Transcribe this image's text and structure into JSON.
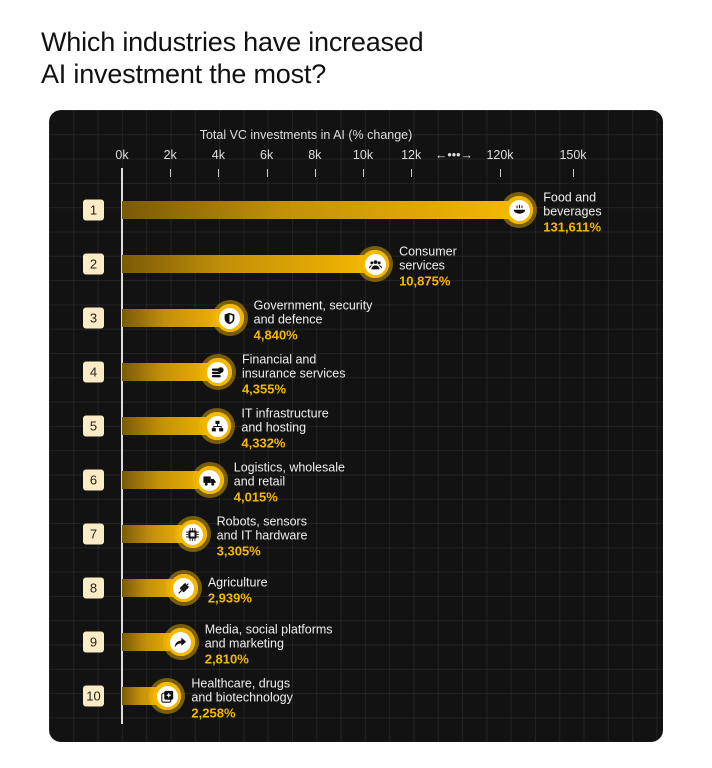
{
  "title": "Which industries have increased\nAI investment the most?",
  "chart_data": {
    "type": "bar",
    "orientation": "horizontal",
    "xlabel": "Total VC investments in AI (% change)",
    "axis_break": "←•••→",
    "x_ticks": [
      "0k",
      "2k",
      "4k",
      "6k",
      "8k",
      "10k",
      "12k",
      "120k",
      "150k"
    ],
    "x_tick_values": [
      0,
      2000,
      4000,
      6000,
      8000,
      10000,
      12000,
      120000,
      150000
    ],
    "grid": true,
    "bar_color": "#f5b800",
    "rows": [
      {
        "rank": "1",
        "label": "Food and\nbeverages",
        "value": 131611,
        "value_label": "131,611%",
        "icon": "food-bowl-icon"
      },
      {
        "rank": "2",
        "label": "Consumer\nservices",
        "value": 10875,
        "value_label": "10,875%",
        "icon": "people-icon"
      },
      {
        "rank": "3",
        "label": "Government, security\nand defence",
        "value": 4840,
        "value_label": "4,840%",
        "icon": "shield-icon"
      },
      {
        "rank": "4",
        "label": "Financial and\ninsurance services",
        "value": 4355,
        "value_label": "4,355%",
        "icon": "coins-icon"
      },
      {
        "rank": "5",
        "label": "IT infrastructure\nand hosting",
        "value": 4332,
        "value_label": "4,332%",
        "icon": "network-icon"
      },
      {
        "rank": "6",
        "label": "Logistics, wholesale\nand retail",
        "value": 4015,
        "value_label": "4,015%",
        "icon": "truck-icon"
      },
      {
        "rank": "7",
        "label": "Robots, sensors\nand IT hardware",
        "value": 3305,
        "value_label": "3,305%",
        "icon": "chip-icon"
      },
      {
        "rank": "8",
        "label": "Agriculture",
        "value": 2939,
        "value_label": "2,939%",
        "icon": "wheat-icon"
      },
      {
        "rank": "9",
        "label": "Media, social platforms\nand marketing",
        "value": 2810,
        "value_label": "2,810%",
        "icon": "share-icon"
      },
      {
        "rank": "10",
        "label": "Healthcare, drugs\nand biotechnology",
        "value": 2258,
        "value_label": "2,258%",
        "icon": "medical-icon"
      }
    ]
  }
}
